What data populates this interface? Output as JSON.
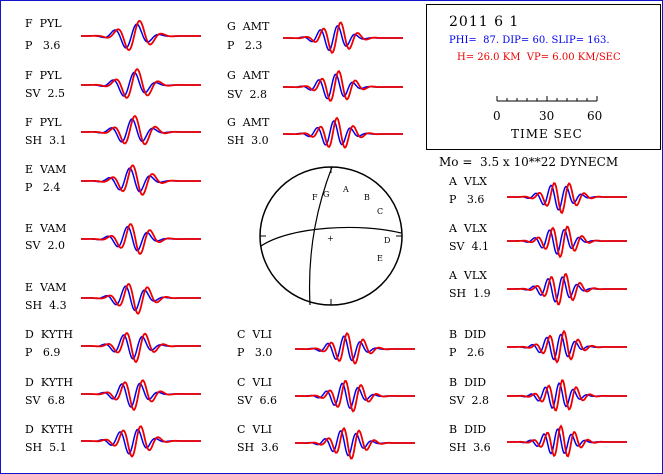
{
  "info": {
    "date": "2011  6  1",
    "mechanism": "PHI=  87. DIP= 60. SLIP= 163.",
    "depth_velocity": "H= 26.0 KM  VP= 6.00 KM/SEC",
    "time_ticks": [
      "0",
      "30",
      "60"
    ],
    "time_axis_label": "TIME  SEC",
    "moment": "Mo =  3.5 x 10**22 DYNECM"
  },
  "colors": {
    "observed": "#0000ee",
    "synthetic": "#ee0000",
    "border": "#1414c8"
  },
  "beachball": {
    "station_labels": [
      "F",
      "G",
      "A",
      "B",
      "C",
      "D",
      "E"
    ],
    "center_mark": "+"
  },
  "traces": [
    {
      "station": "F  PYL",
      "phase": "P   3.6"
    },
    {
      "station": "F  PYL",
      "phase": "SV  2.5"
    },
    {
      "station": "F  PYL",
      "phase": "SH  3.1"
    },
    {
      "station": "E  VAM",
      "phase": "P   2.4"
    },
    {
      "station": "E  VAM",
      "phase": "SV  2.0"
    },
    {
      "station": "E  VAM",
      "phase": "SH  4.3"
    },
    {
      "station": "D  KYTH",
      "phase": "P   6.9"
    },
    {
      "station": "D  KYTH",
      "phase": "SV  6.8"
    },
    {
      "station": "D  KYTH",
      "phase": "SH  5.1"
    },
    {
      "station": "G  AMT",
      "phase": "P   2.3"
    },
    {
      "station": "G  AMT",
      "phase": "SV  2.8"
    },
    {
      "station": "G  AMT",
      "phase": "SH  3.0"
    },
    {
      "station": "C  VLI",
      "phase": "P   3.0"
    },
    {
      "station": "C  VLI",
      "phase": "SV  6.6"
    },
    {
      "station": "C  VLI",
      "phase": "SH  3.6"
    },
    {
      "station": "A  VLX",
      "phase": "P   3.6"
    },
    {
      "station": "A  VLX",
      "phase": "SV  4.1"
    },
    {
      "station": "A  VLX",
      "phase": "SH  1.9"
    },
    {
      "station": "B  DID",
      "phase": "P   2.6"
    },
    {
      "station": "B  DID",
      "phase": "SV  2.8"
    },
    {
      "station": "B  DID",
      "phase": "SH  3.6"
    }
  ]
}
